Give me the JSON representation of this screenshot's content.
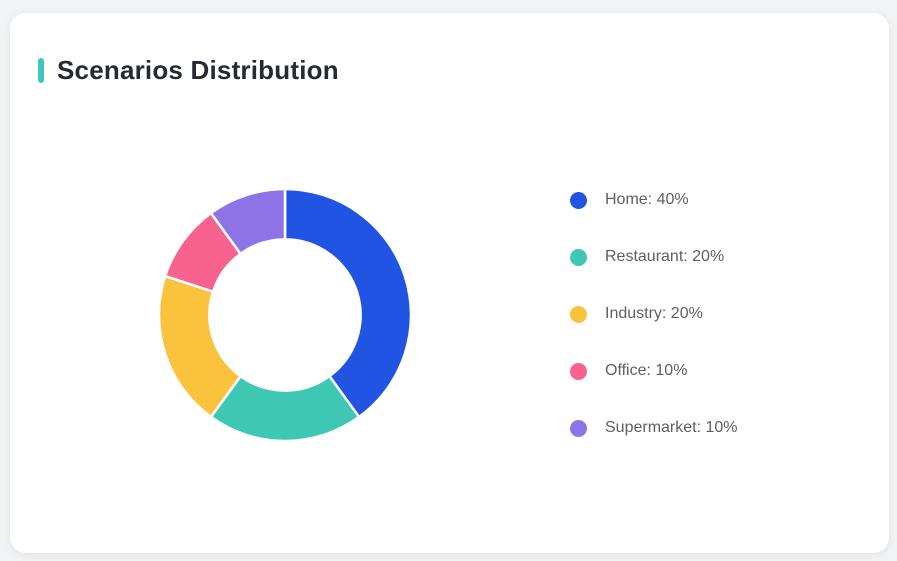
{
  "card": {
    "title": "Scenarios Distribution",
    "accent_color": "#3BC8BF",
    "background": "#FFFFFF",
    "page_background": "#F2F3F5"
  },
  "chart_data": {
    "type": "pie",
    "subtype": "donut",
    "title": "Scenarios Distribution",
    "categories": [
      "Home",
      "Restaurant",
      "Industry",
      "Office",
      "Supermarket"
    ],
    "values": [
      40,
      20,
      20,
      10,
      10
    ],
    "unit": "%",
    "colors": [
      "#2254E3",
      "#3EC7B3",
      "#FBC23D",
      "#F7628F",
      "#8C74E6"
    ],
    "legend_labels": [
      "Home: 40%",
      "Restaurant: 20%",
      "Industry: 20%",
      "Office: 10%",
      "Supermarket: 10%"
    ],
    "start_angle_deg": -90,
    "direction": "clockwise",
    "inner_radius_ratio": 0.6,
    "segment_gap_color": "#FFFFFF",
    "legend_position": "right",
    "grid": false
  }
}
